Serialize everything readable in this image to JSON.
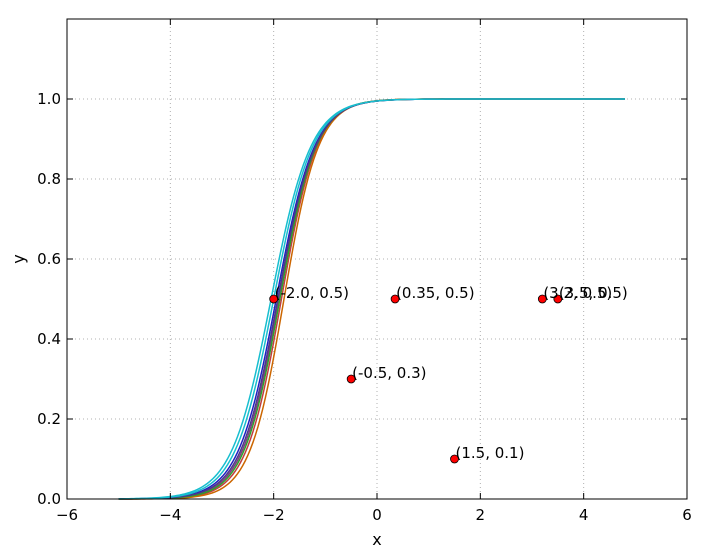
{
  "chart_data": {
    "type": "line",
    "title": "",
    "xlabel": "x",
    "ylabel": "y",
    "xlim": [
      -6,
      6
    ],
    "ylim": [
      0.0,
      1.2
    ],
    "x_ticks": [
      "−6",
      "−4",
      "−2",
      "0",
      "2",
      "4",
      "6"
    ],
    "x_tick_values": [
      -6,
      -4,
      -2,
      0,
      2,
      4,
      6
    ],
    "y_ticks": [
      "0.0",
      "0.2",
      "0.4",
      "0.6",
      "0.8",
      "1.0"
    ],
    "y_tick_values": [
      0.0,
      0.2,
      0.4,
      0.6,
      0.8,
      1.0
    ],
    "grid": true,
    "grid_style": "dotted",
    "series": [
      {
        "color": "#17becf",
        "x0": -2.05,
        "k": 2.6,
        "x_start": -5.0,
        "x_end": 4.8
      },
      {
        "color": "#1f1fbf",
        "x0": -1.95,
        "k": 2.7,
        "x_start": -5.0,
        "x_end": 4.8
      },
      {
        "color": "#7f3f7f",
        "x0": -1.9,
        "k": 2.8,
        "x_start": -5.0,
        "x_end": 4.8
      },
      {
        "color": "#bf3f3f",
        "x0": -1.85,
        "k": 2.9,
        "x_start": -5.0,
        "x_end": 4.8
      },
      {
        "color": "#cc6600",
        "x0": -1.8,
        "k": 3.0,
        "x_start": -5.0,
        "x_end": 4.8
      },
      {
        "color": "#2ca02c",
        "x0": -1.88,
        "k": 2.85,
        "x_start": -5.0,
        "x_end": 4.8
      },
      {
        "color": "#4a3a8a",
        "x0": -1.92,
        "k": 2.75,
        "x_start": -5.0,
        "x_end": 4.8
      },
      {
        "color": "#17becf",
        "x0": -2.0,
        "k": 2.65,
        "x_start": -5.0,
        "x_end": 4.8
      }
    ],
    "points": [
      {
        "x": -2.0,
        "y": 0.5,
        "label": "(-2.0, 0.5)"
      },
      {
        "x": 0.35,
        "y": 0.5,
        "label": "(0.35, 0.5)"
      },
      {
        "x": 3.2,
        "y": 0.5,
        "label": "(3.2, 0.5)"
      },
      {
        "x": 3.5,
        "y": 0.5,
        "label": "(3.5, 0.5)"
      },
      {
        "x": -0.5,
        "y": 0.3,
        "label": "(-0.5, 0.3)"
      },
      {
        "x": 1.5,
        "y": 0.1,
        "label": "(1.5, 0.1)"
      }
    ],
    "point_color": "#ff0000"
  }
}
